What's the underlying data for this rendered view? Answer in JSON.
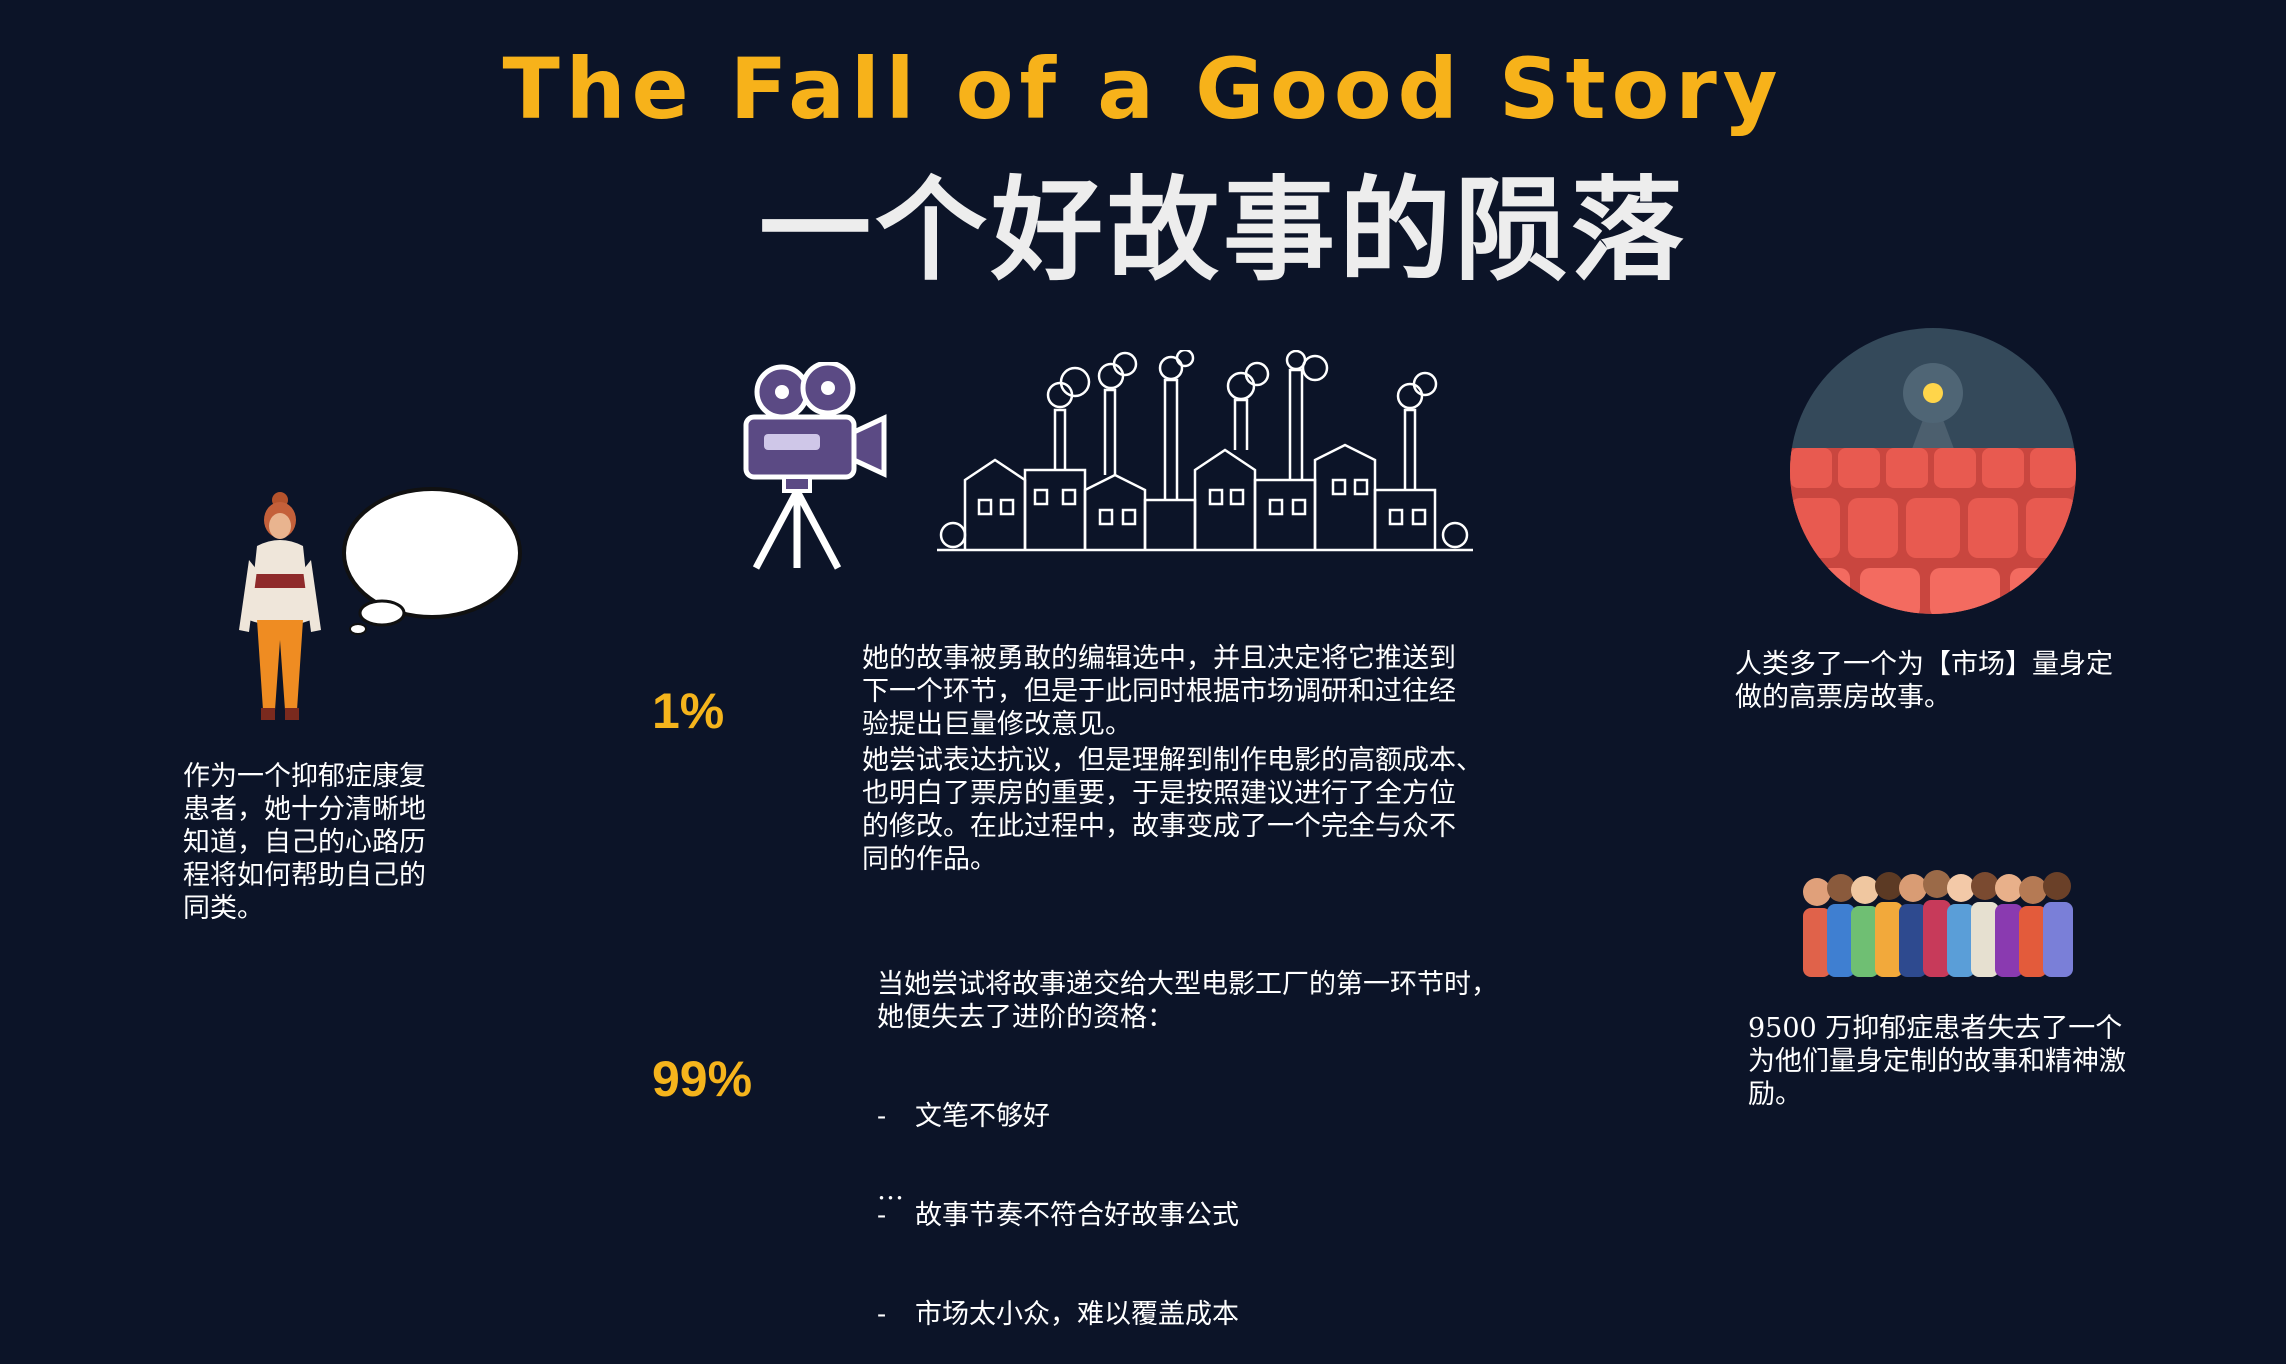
{
  "title_en": "The Fall of a Good Story",
  "title_zh": "一个好故事的陨落",
  "left_caption": "作为一个抑郁症康复\n患者，她十分清晰地\n知道，自己的心路历\n程将如何帮助自己的\n同类。",
  "stat_1": {
    "percent": "1%",
    "paragraph_1": "她的故事被勇敢的编辑选中，并且决定将它推送到\n下一个环节，但是于此同时根据市场调研和过往经\n验提出巨量修改意见。",
    "paragraph_2": "她尝试表达抗议，但是理解到制作电影的高额成本、\n也明白了票房的重要，于是按照建议进行了全方位\n的修改。在此过程中，故事变成了一个完全与众不\n同的作品。"
  },
  "stat_99": {
    "percent": "99%",
    "intro": "当她尝试将故事递交给大型电影工厂的第一环节时，\n她便失去了进阶的资格：",
    "reasons": [
      {
        "dash": "-",
        "text": "文笔不够好"
      },
      {
        "dash": "-",
        "text": "故事节奏不符合好故事公式"
      },
      {
        "dash": "-",
        "text": "市场太小众，难以覆盖成本"
      }
    ],
    "ellipsis": "…"
  },
  "right_top_caption": "人类多了一个为【市场】量身定\n做的高票房故事。",
  "right_bottom_caption": "9500 万抑郁症患者失去了一个\n为他们量身定制的故事和精神激\n励。",
  "icons": {
    "woman": "woman-icon",
    "thought_bubble": "thought-bubble-icon",
    "camera": "movie-camera-icon",
    "factory": "factory-skyline-icon",
    "cinema": "cinema-seats-icon",
    "crowd": "crowd-icon"
  },
  "colors": {
    "background": "#0c1428",
    "accent": "#f7b21a",
    "title_zh": "#ededed"
  }
}
